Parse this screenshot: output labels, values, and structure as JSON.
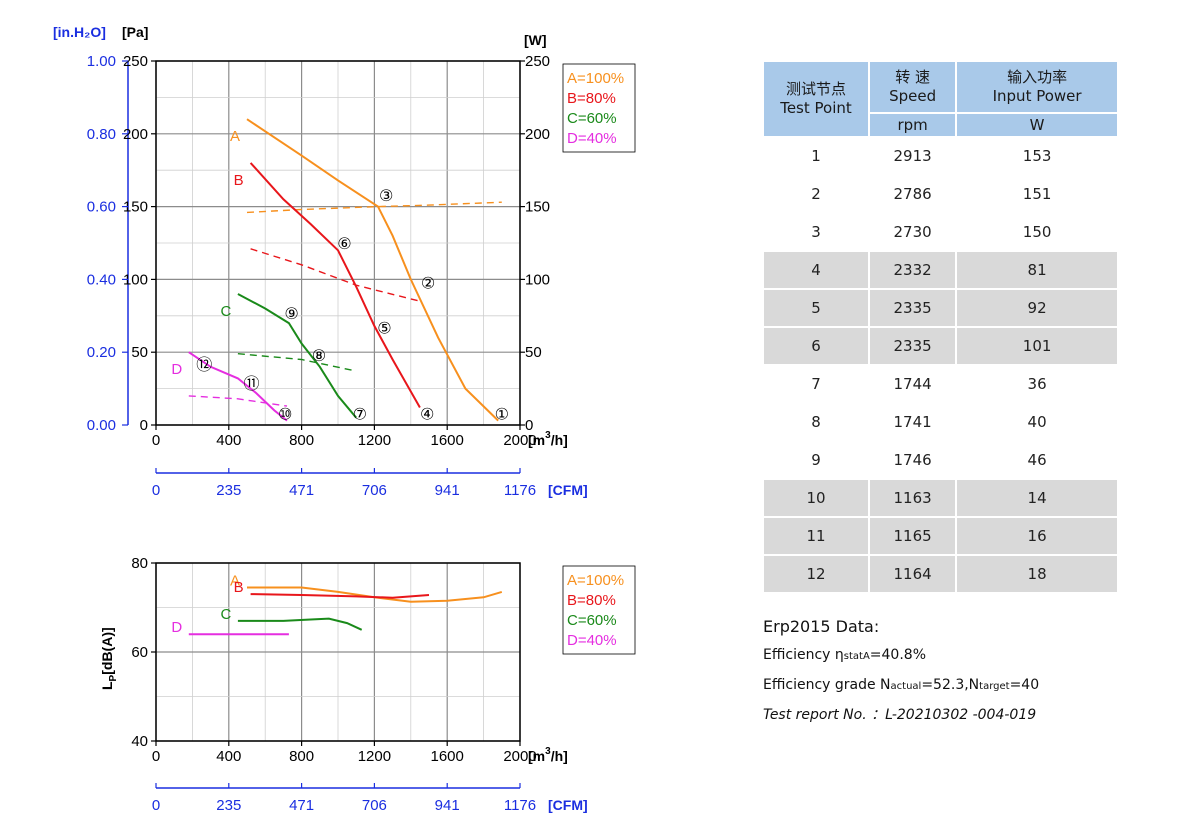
{
  "chart_data": [
    {
      "type": "line",
      "title": "",
      "xlabel": "[m³/h]",
      "ylabel_left_pa": "[Pa]",
      "ylabel_left_inh2o": "[in.H₂O]",
      "ylabel_right": "[W]",
      "x2label": "[CFM]",
      "xlim": [
        0,
        2000
      ],
      "ylim": [
        0,
        250
      ],
      "y2lim": [
        0,
        250
      ],
      "xticks": [
        "0",
        "400",
        "800",
        "1200",
        "1600",
        "2000"
      ],
      "yticks_pa": [
        "0",
        "50",
        "100",
        "150",
        "200",
        "250"
      ],
      "yticks_inh2o": [
        "0.00",
        "0.20",
        "0.40",
        "0.60",
        "0.80",
        "1.00"
      ],
      "yticks_w": [
        "0",
        "50",
        "100",
        "150",
        "200",
        "250"
      ],
      "x2ticks": [
        "0",
        "235",
        "471",
        "706",
        "941",
        "1176"
      ],
      "grid": true,
      "legend_position": "right",
      "legend": [
        "A=100%",
        "B=80%",
        "C=60%",
        "D=40%"
      ],
      "series": [
        {
          "name": "A",
          "color": "#f7901e",
          "curve_label": "A",
          "pressure": [
            [
              500,
              210
            ],
            [
              800,
              185
            ],
            [
              1000,
              168
            ],
            [
              1220,
              150
            ],
            [
              1300,
              130
            ],
            [
              1400,
              100
            ],
            [
              1550,
              60
            ],
            [
              1700,
              25
            ],
            [
              1880,
              3
            ]
          ],
          "power": [
            [
              500,
              146
            ],
            [
              800,
              148
            ],
            [
              1220,
              150
            ],
            [
              1500,
              151
            ],
            [
              1900,
              153
            ]
          ]
        },
        {
          "name": "B",
          "color": "#e8161b",
          "curve_label": "B",
          "pressure": [
            [
              520,
              180
            ],
            [
              700,
              155
            ],
            [
              850,
              138
            ],
            [
              1000,
              120
            ],
            [
              1100,
              95
            ],
            [
              1200,
              68
            ],
            [
              1300,
              45
            ],
            [
              1450,
              12
            ]
          ],
          "power": [
            [
              520,
              121
            ],
            [
              800,
              110
            ],
            [
              1100,
              96
            ],
            [
              1450,
              85
            ]
          ]
        },
        {
          "name": "C",
          "color": "#1a8a1a",
          "curve_label": "C",
          "pressure": [
            [
              450,
              90
            ],
            [
              600,
              80
            ],
            [
              730,
              70
            ],
            [
              800,
              56
            ],
            [
              900,
              40
            ],
            [
              1000,
              20
            ],
            [
              1100,
              5
            ]
          ],
          "power": [
            [
              450,
              49
            ],
            [
              800,
              45
            ],
            [
              1100,
              37
            ]
          ]
        },
        {
          "name": "D",
          "color": "#e52ee0",
          "curve_label": "D",
          "pressure": [
            [
              180,
              50
            ],
            [
              300,
              40
            ],
            [
              450,
              32
            ],
            [
              550,
              22
            ],
            [
              650,
              10
            ],
            [
              720,
              3
            ]
          ],
          "power": [
            [
              180,
              20
            ],
            [
              450,
              18
            ],
            [
              720,
              13
            ]
          ]
        }
      ],
      "test_point_markers": [
        {
          "label": "①",
          "x": 1900,
          "y": 8
        },
        {
          "label": "②",
          "x": 1495,
          "y": 98
        },
        {
          "label": "③",
          "x": 1265,
          "y": 158
        },
        {
          "label": "④",
          "x": 1490,
          "y": 8
        },
        {
          "label": "⑤",
          "x": 1255,
          "y": 67
        },
        {
          "label": "⑥",
          "x": 1035,
          "y": 125
        },
        {
          "label": "⑦",
          "x": 1120,
          "y": 8
        },
        {
          "label": "⑧",
          "x": 895,
          "y": 48
        },
        {
          "label": "⑨",
          "x": 745,
          "y": 77
        },
        {
          "label": "⑩",
          "x": 710,
          "y": 8
        },
        {
          "label": "⑪",
          "x": 525,
          "y": 29
        },
        {
          "label": "⑫",
          "x": 265,
          "y": 42
        }
      ]
    },
    {
      "type": "line",
      "title": "",
      "xlabel": "[m³/h]",
      "ylabel": "LP[dB(A)]",
      "ylabel_main": "L",
      "ylabel_sub": "P",
      "ylabel_unit": "[dB(A)]",
      "x2label": "[CFM]",
      "xlim": [
        0,
        2000
      ],
      "ylim": [
        40,
        80
      ],
      "xticks": [
        "0",
        "400",
        "800",
        "1200",
        "1600",
        "2000"
      ],
      "yticks": [
        "40",
        "60",
        "80"
      ],
      "x2ticks": [
        "0",
        "235",
        "471",
        "706",
        "941",
        "1176"
      ],
      "grid": true,
      "legend_position": "right",
      "legend": [
        "A=100%",
        "B=80%",
        "C=60%",
        "D=40%"
      ],
      "series": [
        {
          "name": "A",
          "color": "#f7901e",
          "curve_label": "A",
          "points": [
            [
              500,
              74.5
            ],
            [
              800,
              74.5
            ],
            [
              1000,
              73.5
            ],
            [
              1200,
              72.3
            ],
            [
              1400,
              71.3
            ],
            [
              1600,
              71.5
            ],
            [
              1800,
              72.3
            ],
            [
              1900,
              73.5
            ]
          ]
        },
        {
          "name": "B",
          "color": "#e8161b",
          "curve_label": "B",
          "points": [
            [
              520,
              73
            ],
            [
              800,
              72.8
            ],
            [
              1100,
              72.5
            ],
            [
              1300,
              72.2
            ],
            [
              1500,
              72.8
            ]
          ]
        },
        {
          "name": "C",
          "color": "#1a8a1a",
          "curve_label": "C",
          "points": [
            [
              450,
              67
            ],
            [
              700,
              67
            ],
            [
              850,
              67.3
            ],
            [
              950,
              67.5
            ],
            [
              1050,
              66.5
            ],
            [
              1130,
              65
            ]
          ]
        },
        {
          "name": "D",
          "color": "#e52ee0",
          "curve_label": "D",
          "points": [
            [
              180,
              64
            ],
            [
              500,
              64
            ],
            [
              730,
              64
            ]
          ]
        }
      ]
    }
  ],
  "table": {
    "header_col1_line1": "测试节点",
    "header_col1_line2": "Test Point",
    "header_col2_line1": "转 速",
    "header_col2_line2": "Speed",
    "header_col3_line1": "输入功率",
    "header_col3_line2": "Input Power",
    "unit_col2": "rpm",
    "unit_col3": "W",
    "rows": [
      [
        "1",
        "2913",
        "153"
      ],
      [
        "2",
        "2786",
        "151"
      ],
      [
        "3",
        "2730",
        "150"
      ],
      [
        "4",
        "2332",
        "81"
      ],
      [
        "5",
        "2335",
        "92"
      ],
      [
        "6",
        "2335",
        "101"
      ],
      [
        "7",
        "1744",
        "36"
      ],
      [
        "8",
        "1741",
        "40"
      ],
      [
        "9",
        "1746",
        "46"
      ],
      [
        "10",
        "1163",
        "14"
      ],
      [
        "11",
        "1165",
        "16"
      ],
      [
        "12",
        "1164",
        "18"
      ]
    ]
  },
  "erp": {
    "title": "Erp2015  Data:",
    "eff_label": "Efficiency η",
    "eff_sub": "statA",
    "eff_value": "=40.8%",
    "grade_label": "Efficiency grade  N",
    "grade_actual_sub": "actual",
    "grade_actual_value": "=52.3,N",
    "grade_target_sub": "target",
    "grade_target_value": "=40",
    "report": "Test report No. ：L-20210302 -004-019"
  }
}
